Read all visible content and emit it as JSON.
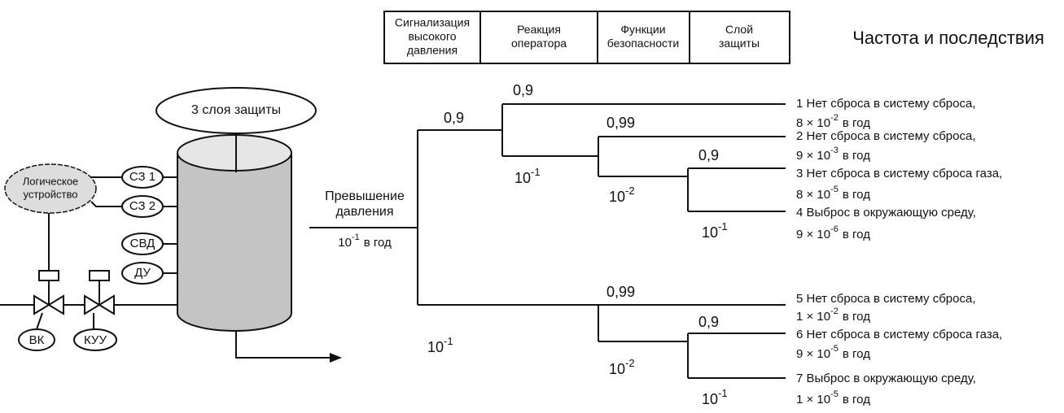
{
  "header": {
    "columns": [
      [
        "Сигнализация",
        "высокого",
        "давления"
      ],
      [
        "Реакция",
        "оператора"
      ],
      [
        "Функции",
        "безопасности"
      ],
      [
        "Слой",
        "защиты"
      ]
    ],
    "title": "Частота и последствия"
  },
  "equipment": {
    "layers_label": "3 слоя защиты",
    "logic": [
      "Логическое",
      "устройство"
    ],
    "tags": [
      "СЗ 1",
      "СЗ 2",
      "СВД",
      "ДУ"
    ],
    "valves": [
      "ВК",
      "КУУ"
    ]
  },
  "initiator": {
    "label": [
      "Превышение",
      "давления"
    ],
    "base": "10",
    "exp": "-1",
    "unit": "в год"
  },
  "branches": [
    {
      "text": "0,9"
    },
    {
      "base": "10",
      "exp": "-1"
    },
    {
      "text": "0,9"
    },
    {
      "base": "10",
      "exp": "-1"
    },
    {
      "text": "0,99"
    },
    {
      "base": "10",
      "exp": "-2"
    },
    {
      "text": "0,9"
    },
    {
      "base": "10",
      "exp": "-1"
    },
    {
      "text": "0,99"
    },
    {
      "base": "10",
      "exp": "-2"
    },
    {
      "text": "0,9"
    },
    {
      "base": "10",
      "exp": "-1"
    }
  ],
  "outcomes": [
    {
      "label": "1 Нет сброса в систему сброса,",
      "mantissa": "8 × 10",
      "exp": "-2",
      "unit": "в год"
    },
    {
      "label": "2 Нет сброса в систему сброса,",
      "mantissa": "9 × 10",
      "exp": "-3",
      "unit": "в год"
    },
    {
      "label": "3 Нет сброса в систему сброса газа,",
      "mantissa": "8 × 10",
      "exp": "-5",
      "unit": "в год"
    },
    {
      "label": "4 Выброс в окружающую среду,",
      "mantissa": "9 × 10",
      "exp": "-6",
      "unit": "в год"
    },
    {
      "label": "5 Нет сброса в систему сброса,",
      "mantissa": "1 × 10",
      "exp": "-2",
      "unit": "в год"
    },
    {
      "label": "6 Нет сброса в систему сброса газа,",
      "mantissa": "9 × 10",
      "exp": "-5",
      "unit": "в год"
    },
    {
      "label": "7 Выброс в окружающую среду,",
      "mantissa": "1 × 10",
      "exp": "-5",
      "unit": "в год"
    }
  ]
}
